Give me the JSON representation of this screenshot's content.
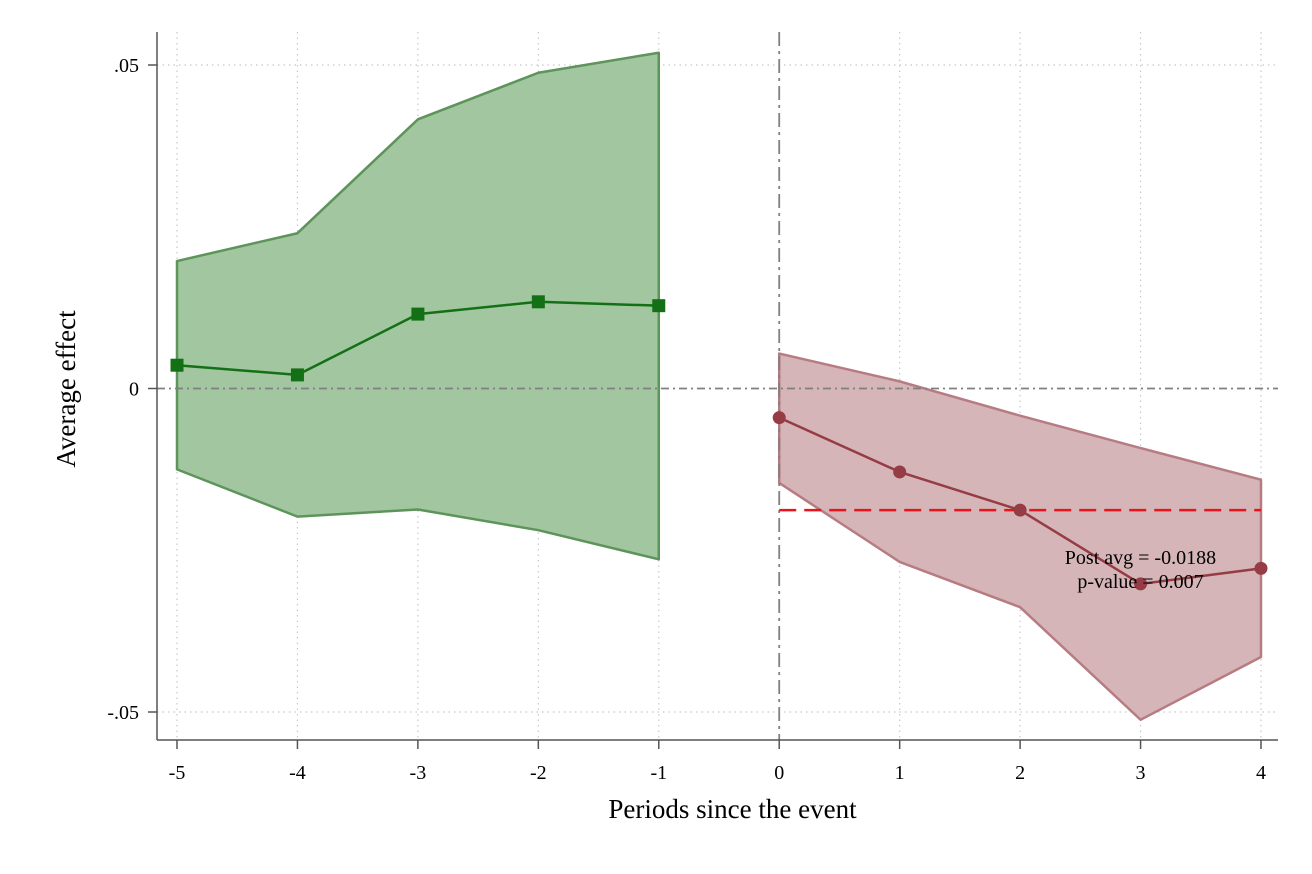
{
  "chart_data": {
    "type": "line",
    "xlabel": "Periods since the event",
    "ylabel": "Average effect",
    "xlim": [
      -5.2,
      4.15
    ],
    "ylim": [
      -0.0545,
      0.055
    ],
    "x_ticks": [
      {
        "value": -5,
        "label": "-5"
      },
      {
        "value": -4,
        "label": "-4"
      },
      {
        "value": -3,
        "label": "-3"
      },
      {
        "value": -2,
        "label": "-2"
      },
      {
        "value": -1,
        "label": "-1"
      },
      {
        "value": 0,
        "label": "0"
      },
      {
        "value": 1,
        "label": "1"
      },
      {
        "value": 2,
        "label": "2"
      },
      {
        "value": 3,
        "label": "3"
      },
      {
        "value": 4,
        "label": "4"
      }
    ],
    "y_ticks": [
      {
        "value": 0.05,
        "label": ".05"
      },
      {
        "value": 0,
        "label": "0"
      },
      {
        "value": -0.05,
        "label": "-.05"
      }
    ],
    "grid": true,
    "series": [
      {
        "x": [
          -5,
          -4,
          -3,
          -2,
          -1
        ],
        "values": [
          0.0036,
          0.0021,
          0.0115,
          0.0134,
          0.0128
        ],
        "ci_lower": [
          -0.0125,
          -0.0198,
          -0.0187,
          -0.0219,
          -0.0264
        ],
        "ci_upper": [
          0.0197,
          0.024,
          0.0416,
          0.0488,
          0.0519
        ],
        "color": "#147014",
        "band_color": "#a2c6a0",
        "band_edge_color": "#5d945a",
        "marker": "square"
      },
      {
        "x": [
          0,
          1,
          2,
          3,
          4
        ],
        "values": [
          -0.0045,
          -0.0129,
          -0.0188,
          -0.0302,
          -0.0278
        ],
        "ci_lower": [
          -0.0146,
          -0.0268,
          -0.0338,
          -0.0512,
          -0.0415
        ],
        "ci_upper": [
          0.0054,
          0.0011,
          -0.0042,
          -0.0092,
          -0.0141
        ],
        "color": "#953c44",
        "band_color": "#d5b5b7",
        "band_edge_color": "#b77c82",
        "marker": "circle"
      }
    ],
    "reference_lines": {
      "zero_line": {
        "y": 0,
        "color": "#808080"
      },
      "event_line": {
        "x": 0,
        "color": "#808080"
      },
      "post_avg_line": {
        "y": -0.0188,
        "x_from": 0,
        "x_to": 4,
        "color": "#e8141c"
      }
    },
    "annotation": {
      "line1": "Post avg = -0.0188",
      "line2": "p-value = 0.007",
      "x": 2.75,
      "y": -0.029
    }
  }
}
